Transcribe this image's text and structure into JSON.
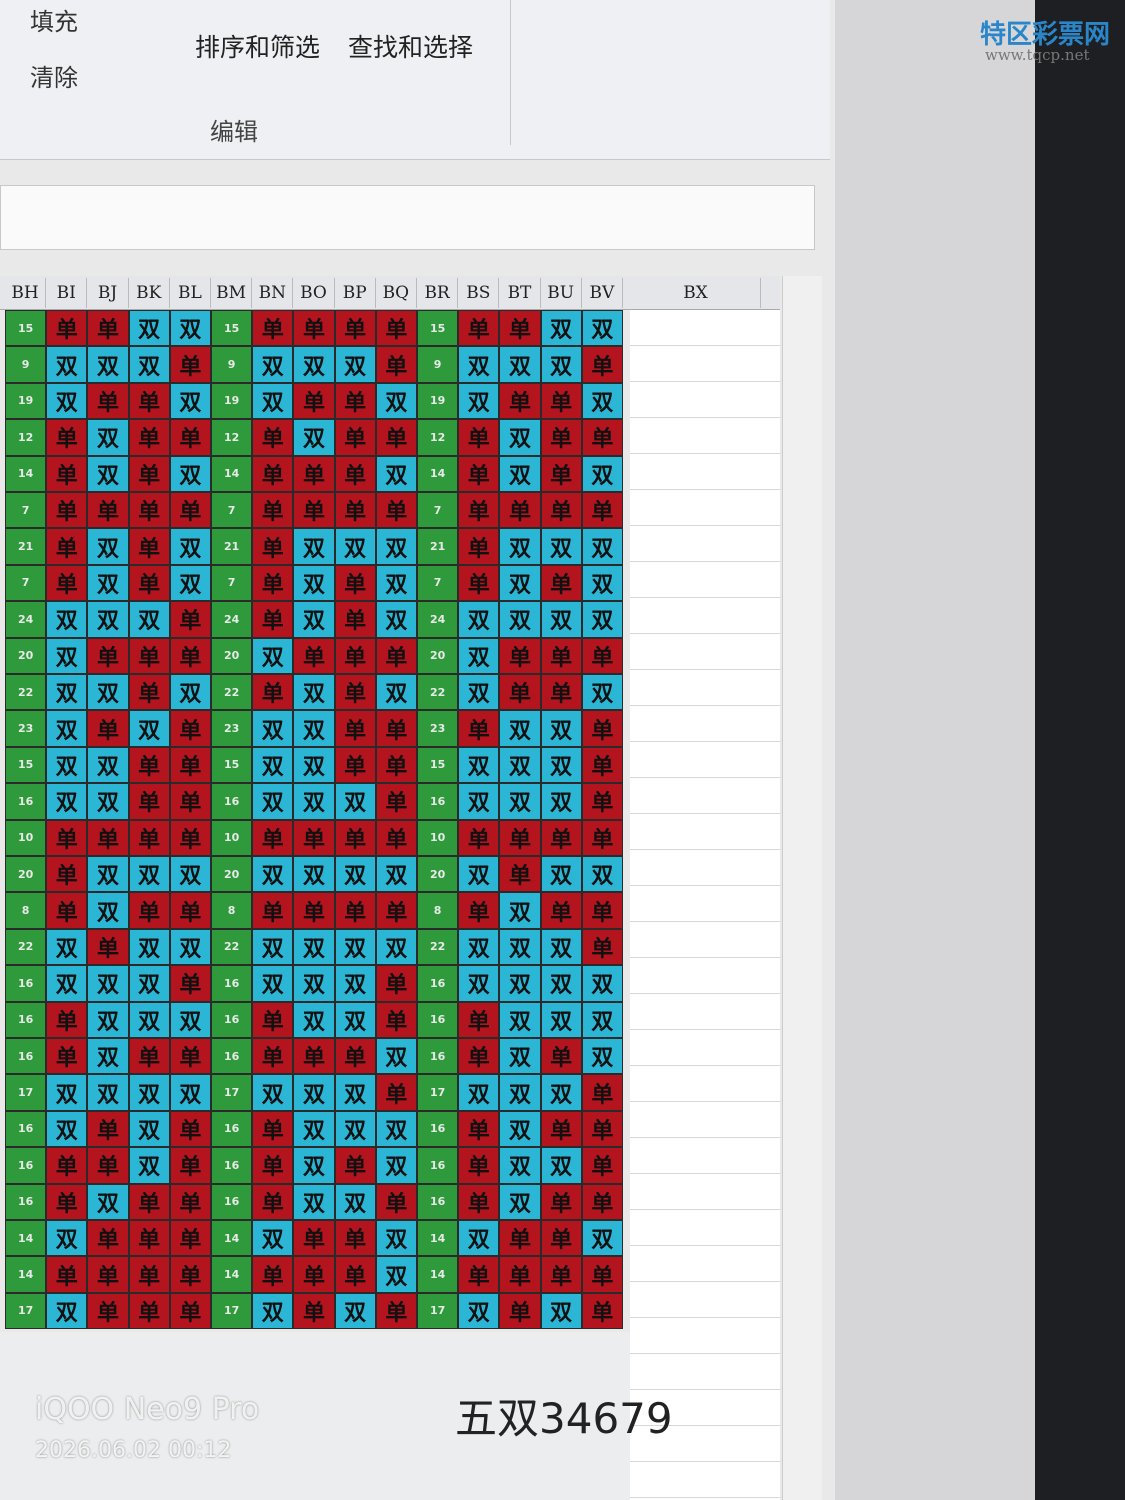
{
  "ribbon": {
    "fill": "填充",
    "clear": "清除",
    "sort_filter": "排序和筛选",
    "find_select": "查找和选择",
    "group": "编辑"
  },
  "watermark": {
    "site": "特区彩票网",
    "url": "www.tqcp.net"
  },
  "sheet": {
    "columns": [
      "BH",
      "BI",
      "BJ",
      "BK",
      "BL",
      "BM",
      "BN",
      "BO",
      "BP",
      "BQ",
      "BR",
      "BS",
      "BT",
      "BU",
      "BV"
    ],
    "extra_column": "BX",
    "colors": {
      "单": "#b3141d",
      "双": "#2bb6d6",
      "number": "#2f9a3c"
    },
    "rows": [
      [
        15,
        "单",
        "单",
        "双",
        "双",
        15,
        "单",
        "单",
        "单",
        "单",
        15,
        "单",
        "单",
        "双",
        "双"
      ],
      [
        9,
        "双",
        "双",
        "双",
        "单",
        9,
        "双",
        "双",
        "双",
        "单",
        9,
        "双",
        "双",
        "双",
        "单"
      ],
      [
        19,
        "双",
        "单",
        "单",
        "双",
        19,
        "双",
        "单",
        "单",
        "双",
        19,
        "双",
        "单",
        "单",
        "双"
      ],
      [
        12,
        "单",
        "双",
        "单",
        "单",
        12,
        "单",
        "双",
        "单",
        "单",
        12,
        "单",
        "双",
        "单",
        "单"
      ],
      [
        14,
        "单",
        "双",
        "单",
        "双",
        14,
        "单",
        "单",
        "单",
        "双",
        14,
        "单",
        "双",
        "单",
        "双"
      ],
      [
        7,
        "单",
        "单",
        "单",
        "单",
        7,
        "单",
        "单",
        "单",
        "单",
        7,
        "单",
        "单",
        "单",
        "单"
      ],
      [
        21,
        "单",
        "双",
        "单",
        "双",
        21,
        "单",
        "双",
        "双",
        "双",
        21,
        "单",
        "双",
        "双",
        "双"
      ],
      [
        7,
        "单",
        "双",
        "单",
        "双",
        7,
        "单",
        "双",
        "单",
        "双",
        7,
        "单",
        "双",
        "单",
        "双"
      ],
      [
        24,
        "双",
        "双",
        "双",
        "单",
        24,
        "单",
        "双",
        "单",
        "双",
        24,
        "双",
        "双",
        "双",
        "双"
      ],
      [
        20,
        "双",
        "单",
        "单",
        "单",
        20,
        "双",
        "单",
        "单",
        "单",
        20,
        "双",
        "单",
        "单",
        "单"
      ],
      [
        22,
        "双",
        "双",
        "单",
        "双",
        22,
        "单",
        "双",
        "单",
        "双",
        22,
        "双",
        "单",
        "单",
        "双"
      ],
      [
        23,
        "双",
        "单",
        "双",
        "单",
        23,
        "双",
        "双",
        "单",
        "单",
        23,
        "单",
        "双",
        "双",
        "单"
      ],
      [
        15,
        "双",
        "双",
        "单",
        "单",
        15,
        "双",
        "双",
        "单",
        "单",
        15,
        "双",
        "双",
        "双",
        "单"
      ],
      [
        16,
        "双",
        "双",
        "单",
        "单",
        16,
        "双",
        "双",
        "双",
        "单",
        16,
        "双",
        "双",
        "双",
        "单"
      ],
      [
        10,
        "单",
        "单",
        "单",
        "单",
        10,
        "单",
        "单",
        "单",
        "单",
        10,
        "单",
        "单",
        "单",
        "单"
      ],
      [
        20,
        "单",
        "双",
        "双",
        "双",
        20,
        "双",
        "双",
        "双",
        "双",
        20,
        "双",
        "单",
        "双",
        "双"
      ],
      [
        8,
        "单",
        "双",
        "单",
        "单",
        8,
        "单",
        "单",
        "单",
        "单",
        8,
        "单",
        "双",
        "单",
        "单"
      ],
      [
        22,
        "双",
        "单",
        "双",
        "双",
        22,
        "双",
        "双",
        "双",
        "双",
        22,
        "双",
        "双",
        "双",
        "单"
      ],
      [
        16,
        "双",
        "双",
        "双",
        "单",
        16,
        "双",
        "双",
        "双",
        "单",
        16,
        "双",
        "双",
        "双",
        "双"
      ],
      [
        16,
        "单",
        "双",
        "双",
        "双",
        16,
        "单",
        "双",
        "双",
        "单",
        16,
        "单",
        "双",
        "双",
        "双"
      ],
      [
        16,
        "单",
        "双",
        "单",
        "单",
        16,
        "单",
        "单",
        "单",
        "双",
        16,
        "单",
        "双",
        "单",
        "双"
      ],
      [
        17,
        "双",
        "双",
        "双",
        "双",
        17,
        "双",
        "双",
        "双",
        "单",
        17,
        "双",
        "双",
        "双",
        "单"
      ],
      [
        16,
        "双",
        "单",
        "双",
        "单",
        16,
        "单",
        "双",
        "双",
        "双",
        16,
        "单",
        "双",
        "单",
        "单"
      ],
      [
        16,
        "单",
        "单",
        "双",
        "单",
        16,
        "单",
        "双",
        "单",
        "双",
        16,
        "单",
        "双",
        "双",
        "单"
      ],
      [
        16,
        "单",
        "双",
        "单",
        "单",
        16,
        "单",
        "双",
        "双",
        "单",
        16,
        "单",
        "双",
        "单",
        "单"
      ],
      [
        14,
        "双",
        "单",
        "单",
        "单",
        14,
        "双",
        "单",
        "单",
        "双",
        14,
        "双",
        "单",
        "单",
        "双"
      ],
      [
        14,
        "单",
        "单",
        "单",
        "单",
        14,
        "单",
        "单",
        "单",
        "双",
        14,
        "单",
        "单",
        "单",
        "单"
      ],
      [
        17,
        "双",
        "单",
        "单",
        "单",
        17,
        "双",
        "单",
        "双",
        "单",
        17,
        "双",
        "单",
        "双",
        "单"
      ]
    ]
  },
  "note": "五双34679",
  "camera": {
    "model": "iQOO Neo9 Pro",
    "timestamp": "2026.06.02 00:12"
  }
}
